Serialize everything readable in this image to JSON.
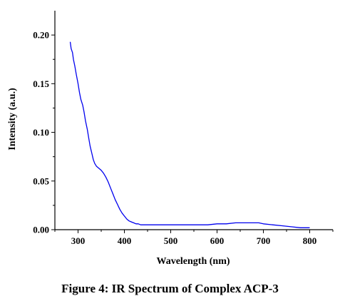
{
  "caption": "Figure 4: IR Spectrum of Complex ACP-3",
  "chart_data": {
    "type": "line",
    "title": "",
    "xlabel": "Wavelength (nm)",
    "ylabel": "Intensity (a.u.)",
    "xlim": [
      250,
      850
    ],
    "ylim": [
      0.0,
      0.225
    ],
    "xticks": [
      300,
      400,
      500,
      600,
      700,
      800
    ],
    "xtick_labels": [
      "300",
      "400",
      "500",
      "600",
      "700",
      "800"
    ],
    "yticks": [
      0.0,
      0.05,
      0.1,
      0.15,
      0.2
    ],
    "ytick_labels": [
      "0.00",
      "0.05",
      "0.10",
      "0.15",
      "0.20"
    ],
    "grid": false,
    "legend": "none",
    "line_color": "#0000ee",
    "series": [
      {
        "x": [
          283,
          285,
          288,
          290,
          293,
          296,
          300,
          303,
          306,
          310,
          313,
          316,
          320,
          323,
          326,
          330,
          333,
          336,
          340,
          345,
          350,
          355,
          360,
          365,
          370,
          375,
          380,
          385,
          390,
          395,
          400,
          405,
          410,
          415,
          420,
          425,
          430,
          435,
          440,
          445,
          450,
          460,
          480,
          500,
          520,
          540,
          560,
          580,
          600,
          620,
          640,
          660,
          680,
          690,
          700,
          720,
          740,
          760,
          780,
          800
        ],
        "y": [
          0.193,
          0.186,
          0.182,
          0.175,
          0.168,
          0.16,
          0.15,
          0.141,
          0.134,
          0.128,
          0.121,
          0.112,
          0.103,
          0.094,
          0.086,
          0.078,
          0.072,
          0.068,
          0.065,
          0.063,
          0.061,
          0.058,
          0.054,
          0.049,
          0.043,
          0.037,
          0.031,
          0.026,
          0.021,
          0.017,
          0.014,
          0.011,
          0.009,
          0.008,
          0.007,
          0.006,
          0.006,
          0.005,
          0.005,
          0.005,
          0.005,
          0.005,
          0.005,
          0.005,
          0.005,
          0.005,
          0.005,
          0.005,
          0.006,
          0.006,
          0.007,
          0.007,
          0.007,
          0.007,
          0.006,
          0.005,
          0.004,
          0.003,
          0.002,
          0.002
        ]
      }
    ]
  }
}
